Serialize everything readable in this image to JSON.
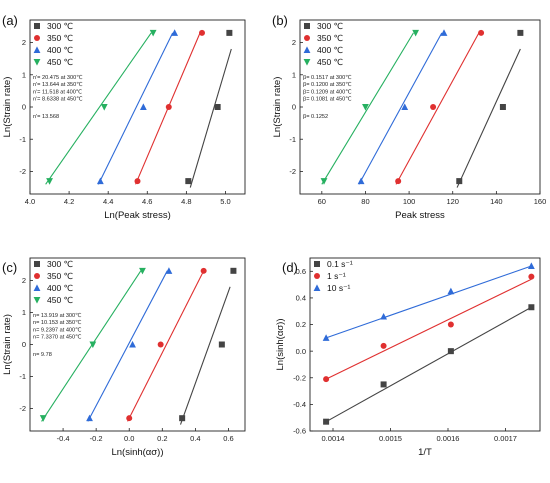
{
  "colors": {
    "black": "#444444",
    "red": "#e03030",
    "blue": "#2f6bd8",
    "green": "#26b060"
  },
  "chart_data": [
    {
      "id": "a",
      "type": "scatter",
      "panel_label": "(a)",
      "xlabel": "Ln(Peak stress)",
      "ylabel": "Ln(Strain rate)",
      "xlim": [
        4.0,
        5.1
      ],
      "ylim": [
        -2.7,
        2.7
      ],
      "xticks": [
        "4.0",
        "4.2",
        "4.4",
        "4.6",
        "4.8",
        "5.0"
      ],
      "yticks": [
        "-2",
        "-1",
        "0",
        "1",
        "2"
      ],
      "legend_position": "top-left",
      "series": [
        {
          "name": "300 ℃",
          "color": "#444444",
          "marker": "square",
          "points": [
            [
              4.81,
              -2.3
            ],
            [
              4.96,
              0
            ],
            [
              5.02,
              2.3
            ]
          ],
          "fit": [
            [
              4.82,
              -2.5
            ],
            [
              5.03,
              1.8
            ]
          ]
        },
        {
          "name": "350 ℃",
          "color": "#e03030",
          "marker": "circle",
          "points": [
            [
              4.55,
              -2.3
            ],
            [
              4.71,
              0
            ],
            [
              4.88,
              2.3
            ]
          ],
          "fit": [
            [
              4.54,
              -2.4
            ],
            [
              4.87,
              2.3
            ]
          ]
        },
        {
          "name": "400 ℃",
          "color": "#2f6bd8",
          "marker": "triangle",
          "points": [
            [
              4.36,
              -2.3
            ],
            [
              4.58,
              0
            ],
            [
              4.74,
              2.3
            ]
          ],
          "fit": [
            [
              4.35,
              -2.4
            ],
            [
              4.73,
              2.3
            ]
          ]
        },
        {
          "name": "450 ℃",
          "color": "#26b060",
          "marker": "triangle-down",
          "points": [
            [
              4.1,
              -2.3
            ],
            [
              4.38,
              0
            ],
            [
              4.63,
              2.3
            ]
          ],
          "fit": [
            [
              4.08,
              -2.4
            ],
            [
              4.62,
              2.3
            ]
          ]
        }
      ],
      "annotations": [
        "n'= 20.475 at 300℃",
        "n'= 13.644 at 350℃",
        "n'= 11.518 at 400℃",
        "n'= 8.6338 at 450℃",
        "n'= 13.568"
      ]
    },
    {
      "id": "b",
      "type": "scatter",
      "panel_label": "(b)",
      "xlabel": "Peak stress",
      "ylabel": "Ln(Strain rate)",
      "xlim": [
        50,
        160
      ],
      "ylim": [
        -2.7,
        2.7
      ],
      "xticks": [
        "60",
        "80",
        "100",
        "120",
        "140",
        "160"
      ],
      "yticks": [
        "-2",
        "-1",
        "0",
        "1",
        "2"
      ],
      "legend_position": "top-left",
      "series": [
        {
          "name": "300 ℃",
          "color": "#444444",
          "marker": "square",
          "points": [
            [
              123,
              -2.3
            ],
            [
              143,
              0
            ],
            [
              151,
              2.3
            ]
          ],
          "fit": [
            [
              122,
              -2.5
            ],
            [
              151,
              1.8
            ]
          ]
        },
        {
          "name": "350 ℃",
          "color": "#e03030",
          "marker": "circle",
          "points": [
            [
              95,
              -2.3
            ],
            [
              111,
              0
            ],
            [
              133,
              2.3
            ]
          ],
          "fit": [
            [
              94,
              -2.4
            ],
            [
              132,
              2.3
            ]
          ]
        },
        {
          "name": "400 ℃",
          "color": "#2f6bd8",
          "marker": "triangle",
          "points": [
            [
              78,
              -2.3
            ],
            [
              98,
              0
            ],
            [
              116,
              2.3
            ]
          ],
          "fit": [
            [
              77,
              -2.4
            ],
            [
              115,
              2.3
            ]
          ]
        },
        {
          "name": "450 ℃",
          "color": "#26b060",
          "marker": "triangle-down",
          "points": [
            [
              61,
              -2.3
            ],
            [
              80,
              0
            ],
            [
              103,
              2.3
            ]
          ],
          "fit": [
            [
              60,
              -2.4
            ],
            [
              102,
              2.3
            ]
          ]
        }
      ],
      "annotations": [
        "β= 0.1517 at 300℃",
        "β= 0.1200 at 350℃",
        "β= 0.1209 at 400℃",
        "β= 0.1081 at 450℃",
        "β= 0.1252"
      ]
    },
    {
      "id": "c",
      "type": "scatter",
      "panel_label": "(c)",
      "xlabel": "Ln(sinh(ασ))",
      "ylabel": "Ln(Strain rate)",
      "xlim": [
        -0.6,
        0.7
      ],
      "ylim": [
        -2.7,
        2.7
      ],
      "xticks": [
        "-0.4",
        "-0.2",
        "0.0",
        "0.2",
        "0.4",
        "0.6"
      ],
      "yticks": [
        "-2",
        "-1",
        "0",
        "1",
        "2"
      ],
      "legend_position": "top-left",
      "series": [
        {
          "name": "300 ℃",
          "color": "#444444",
          "marker": "square",
          "points": [
            [
              0.32,
              -2.3
            ],
            [
              0.56,
              0
            ],
            [
              0.63,
              2.3
            ]
          ],
          "fit": [
            [
              0.31,
              -2.5
            ],
            [
              0.61,
              1.8
            ]
          ]
        },
        {
          "name": "350 ℃",
          "color": "#e03030",
          "marker": "circle",
          "points": [
            [
              0.0,
              -2.3
            ],
            [
              0.19,
              0
            ],
            [
              0.45,
              2.3
            ]
          ],
          "fit": [
            [
              -0.01,
              -2.4
            ],
            [
              0.45,
              2.3
            ]
          ]
        },
        {
          "name": "400 ℃",
          "color": "#2f6bd8",
          "marker": "triangle",
          "points": [
            [
              -0.24,
              -2.3
            ],
            [
              0.02,
              0
            ],
            [
              0.24,
              2.3
            ]
          ],
          "fit": [
            [
              -0.25,
              -2.4
            ],
            [
              0.23,
              2.3
            ]
          ]
        },
        {
          "name": "450 ℃",
          "color": "#26b060",
          "marker": "triangle-down",
          "points": [
            [
              -0.52,
              -2.3
            ],
            [
              -0.22,
              0
            ],
            [
              0.08,
              2.3
            ]
          ],
          "fit": [
            [
              -0.53,
              -2.4
            ],
            [
              0.07,
              2.3
            ]
          ]
        }
      ],
      "annotations": [
        "n= 13.919 at 300℃",
        "n= 10.153 at 350℃",
        "n= 9.2397 at 400℃",
        "n= 7.3370 at 450℃",
        "n= 9.78"
      ]
    },
    {
      "id": "d",
      "type": "scatter",
      "panel_label": "(d)",
      "xlabel": "1/T",
      "ylabel": "Ln(sinh(ασ))",
      "xlim": [
        0.00136,
        0.00176
      ],
      "ylim": [
        -0.6,
        0.7
      ],
      "xticks": [
        "0.0014",
        "0.0015",
        "0.0016",
        "0.0017"
      ],
      "xtick_values": [
        0.0014,
        0.0015,
        0.0016,
        0.0017
      ],
      "yticks": [
        "-0.6",
        "-0.4",
        "-0.2",
        "0.0",
        "0.2",
        "0.4",
        "0.6"
      ],
      "ytick_values": [
        -0.6,
        -0.4,
        -0.2,
        0.0,
        0.2,
        0.4,
        0.6
      ],
      "legend_position": "top-left",
      "series": [
        {
          "name": "0.1 s⁻¹",
          "color": "#444444",
          "marker": "square",
          "points": [
            [
              0.001388,
              -0.53
            ],
            [
              0.001488,
              -0.25
            ],
            [
              0.001605,
              0.0
            ],
            [
              0.001745,
              0.33
            ]
          ],
          "fit": [
            [
              0.001388,
              -0.53
            ],
            [
              0.001745,
              0.33
            ]
          ]
        },
        {
          "name": "1 s⁻¹",
          "color": "#e03030",
          "marker": "circle",
          "points": [
            [
              0.001388,
              -0.21
            ],
            [
              0.001488,
              0.04
            ],
            [
              0.001605,
              0.2
            ],
            [
              0.001745,
              0.56
            ]
          ],
          "fit": [
            [
              0.001388,
              -0.21
            ],
            [
              0.001745,
              0.54
            ]
          ]
        },
        {
          "name": "10 s⁻¹",
          "color": "#2f6bd8",
          "marker": "triangle",
          "points": [
            [
              0.001388,
              0.1
            ],
            [
              0.001488,
              0.26
            ],
            [
              0.001605,
              0.45
            ],
            [
              0.001745,
              0.64
            ]
          ],
          "fit": [
            [
              0.001388,
              0.1
            ],
            [
              0.001745,
              0.64
            ]
          ]
        }
      ],
      "annotations": []
    }
  ]
}
